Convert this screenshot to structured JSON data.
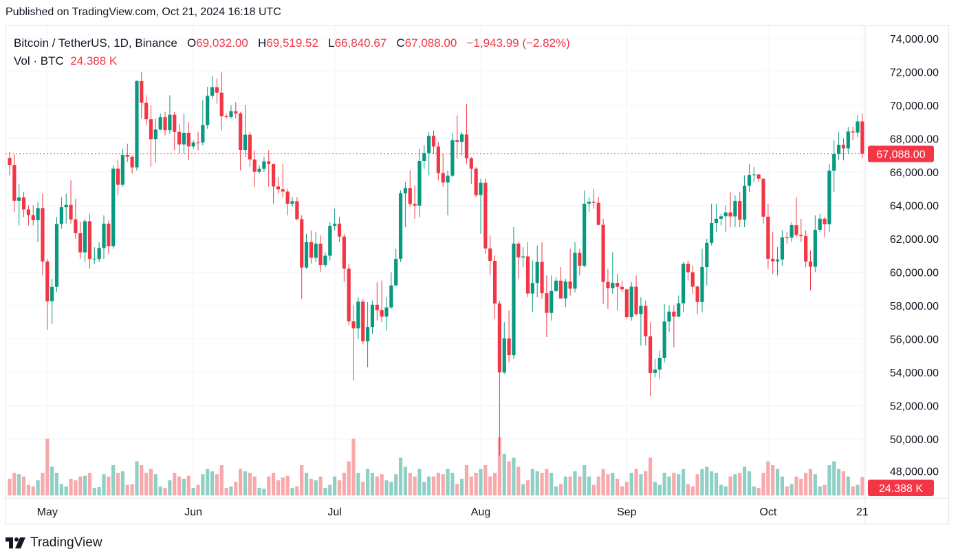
{
  "published": "Published on TradingView.com, Oct 21, 2024 16:18 UTC",
  "legend": {
    "symbol": "Bitcoin / TetherUS, 1D, Binance",
    "o_label": "O",
    "o_value": "69,032.00",
    "h_label": "H",
    "h_value": "69,519.52",
    "l_label": "L",
    "l_value": "66,840.67",
    "c_label": "C",
    "c_value": "67,088.00",
    "change": "−1,943.99 (−2.82%)",
    "vol_label": "Vol · BTC",
    "vol_value": "24.388 K"
  },
  "colors": {
    "up": "#089981",
    "down": "#f23645",
    "up_vol": "#8fd0c6",
    "down_vol": "#f7a9ac",
    "grid": "#f0f3fa"
  },
  "footer": {
    "brand": "TradingView"
  },
  "chart_data": {
    "type": "candlestick",
    "title": "Bitcoin / TetherUS, 1D, Binance",
    "start_date": "2024-04-23",
    "interval": "1D",
    "ylim": [
      47000,
      75000
    ],
    "y_ticks": [
      50000,
      52000,
      54000,
      56000,
      58000,
      60000,
      62000,
      64000,
      66000,
      68000,
      70000,
      72000,
      74000
    ],
    "y_tick_labels": [
      "50,000.00",
      "52,000.00",
      "54,000.00",
      "56,000.00",
      "58,000.00",
      "60,000.00",
      "62,000.00",
      "64,000.00",
      "66,000.00",
      "68,000.00",
      "70,000.00",
      "72,000.00",
      "74,000.00"
    ],
    "hidden_tick_label": "48,000.00",
    "x_ticks": [
      {
        "label": "May",
        "index": 8
      },
      {
        "label": "Jun",
        "index": 39
      },
      {
        "label": "Jul",
        "index": 69
      },
      {
        "label": "Aug",
        "index": 100
      },
      {
        "label": "Sep",
        "index": 131
      },
      {
        "label": "Oct",
        "index": 161
      },
      {
        "label": "21",
        "index": 181
      }
    ],
    "last_price": 67088.0,
    "last_price_label": "67,088.00",
    "last_volume_label": "24.388 K",
    "close": [
      66407,
      64276,
      64481,
      63755,
      63419,
      63113,
      63841,
      60636,
      58254,
      59123,
      62889,
      63891,
      64031,
      63161,
      62334,
      61187,
      63049,
      60792,
      60793,
      61448,
      62901,
      61552,
      66206,
      65235,
      67024,
      66915,
      66274,
      71446,
      70148,
      69166,
      67969,
      68549,
      69290,
      68507,
      69436,
      68398,
      67652,
      68352,
      67540,
      67766,
      67765,
      68809,
      70568,
      71082,
      70757,
      69342,
      69305,
      69648,
      69512,
      67319,
      68243,
      66756,
      66012,
      66191,
      66639,
      66490,
      65140,
      64960,
      64828,
      64096,
      64252,
      63180,
      60277,
      61804,
      60864,
      61706,
      60427,
      60986,
      62772,
      62900,
      62135,
      60208,
      57050,
      56628,
      58231,
      55857,
      56714,
      58050,
      57725,
      57339,
      57889,
      59204,
      60797,
      64724,
      65043,
      64087,
      63987,
      66660,
      67139,
      68165,
      67532,
      65937,
      65372,
      65777,
      67912,
      67813,
      68255,
      66819,
      66201,
      64619,
      65357,
      61415,
      60680,
      58116,
      53991,
      56034,
      55027,
      61710,
      60880,
      60945,
      58719,
      59354,
      60609,
      58738,
      57560,
      58874,
      59491,
      58427,
      59438,
      59013,
      61156,
      60381,
      64103,
      64220,
      64158,
      62835,
      59415,
      59034,
      59359,
      59123,
      58974,
      57301,
      59132,
      57487,
      57971,
      56160,
      53962,
      54160,
      54869,
      57042,
      57635,
      57339,
      58132,
      60499,
      59993,
      59132,
      58213,
      60309,
      61759,
      62947,
      63201,
      63348,
      63578,
      63339,
      64262,
      63143,
      65181,
      65828,
      65856,
      65602,
      63327,
      60805,
      60650,
      60754,
      62080,
      62068,
      62819,
      62224,
      62160,
      60636,
      60326,
      62540,
      63206,
      62870,
      66083,
      67074,
      67620,
      67421,
      68428,
      68368,
      69032,
      67088
    ],
    "first_open": 66837,
    "high": [
      67200,
      67070,
      65300,
      64800,
      64000,
      64000,
      64200,
      64700,
      60800,
      59600,
      63300,
      64500,
      64700,
      65500,
      64400,
      63000,
      63200,
      63500,
      61500,
      61800,
      63400,
      63100,
      66400,
      66700,
      67400,
      67700,
      67000,
      71500,
      71980,
      70600,
      70000,
      69200,
      69500,
      69600,
      70600,
      69600,
      68900,
      69500,
      69000,
      67900,
      68400,
      70300,
      71100,
      71760,
      71600,
      72000,
      69500,
      70000,
      70200,
      69600,
      70000,
      68400,
      67300,
      66400,
      66900,
      67300,
      66500,
      65700,
      66500,
      65000,
      64500,
      64500,
      63400,
      62300,
      62500,
      62400,
      62200,
      61200,
      63000,
      63800,
      63300,
      62300,
      60500,
      58000,
      58500,
      58400,
      58200,
      58300,
      59400,
      59500,
      58500,
      60000,
      61400,
      64900,
      65400,
      66100,
      65200,
      67400,
      67600,
      68400,
      68500,
      67800,
      67100,
      66100,
      68300,
      69400,
      68400,
      70080,
      66900,
      66300,
      65600,
      65600,
      62200,
      61000,
      58300,
      57000,
      57700,
      62700,
      61800,
      61500,
      61800,
      60700,
      61600,
      61800,
      59800,
      59800,
      59700,
      60300,
      59600,
      61400,
      61800,
      61400,
      64900,
      64500,
      65000,
      64500,
      63200,
      60200,
      61200,
      59900,
      59500,
      59000,
      59400,
      59800,
      58500,
      58300,
      57000,
      54800,
      55300,
      58100,
      58000,
      58000,
      58600,
      60600,
      60700,
      60400,
      59200,
      61400,
      62000,
      64100,
      64100,
      63500,
      64000,
      64800,
      64600,
      64800,
      65800,
      66500,
      66300,
      65900,
      65600,
      64100,
      62400,
      61500,
      62500,
      62400,
      63000,
      64500,
      63200,
      62500,
      61300,
      63400,
      63500,
      63300,
      66500,
      67900,
      68400,
      68000,
      68700,
      68700,
      69400,
      69519.52
    ],
    "low": [
      65800,
      63600,
      62800,
      63300,
      62800,
      62800,
      61800,
      59800,
      56550,
      56900,
      58800,
      62600,
      62900,
      62900,
      62000,
      60800,
      60600,
      60200,
      60500,
      60600,
      60800,
      61100,
      61400,
      64600,
      65100,
      66600,
      65900,
      66100,
      69200,
      68800,
      66300,
      66600,
      68500,
      68200,
      68300,
      67300,
      67100,
      67100,
      66700,
      67400,
      67300,
      67600,
      68600,
      70400,
      70100,
      68500,
      69200,
      69200,
      69200,
      66100,
      66900,
      66300,
      65100,
      65900,
      66000,
      65100,
      64100,
      64700,
      64500,
      63400,
      63900,
      63100,
      58400,
      60200,
      60500,
      60600,
      60000,
      60300,
      60700,
      62500,
      61800,
      59400,
      56800,
      53500,
      56000,
      55700,
      54300,
      56300,
      57100,
      57000,
      56500,
      57800,
      59200,
      60600,
      62700,
      63900,
      63200,
      63300,
      66200,
      65800,
      67100,
      65500,
      65100,
      63400,
      65700,
      66800,
      67000,
      66500,
      65300,
      64500,
      62300,
      61100,
      59800,
      57200,
      49000,
      53900,
      54600,
      54800,
      59600,
      60300,
      58500,
      57600,
      58500,
      58400,
      56100,
      57100,
      58800,
      58400,
      57900,
      58600,
      58800,
      59800,
      60300,
      63600,
      63800,
      62800,
      58100,
      57800,
      58700,
      57700,
      58800,
      57200,
      57100,
      57400,
      55600,
      55600,
      52550,
      53700,
      53600,
      54600,
      56400,
      55500,
      57300,
      57600,
      59500,
      58700,
      57500,
      57600,
      59200,
      61600,
      62400,
      62800,
      62400,
      62700,
      62700,
      62700,
      62700,
      64800,
      65400,
      65400,
      62900,
      60200,
      59900,
      59800,
      60400,
      61700,
      61800,
      62100,
      61800,
      60300,
      58900,
      60000,
      62400,
      62100,
      62400,
      64800,
      66700,
      66700,
      67100,
      67900,
      68100,
      66840.67
    ],
    "volume_k": [
      22,
      30,
      28,
      25,
      14,
      12,
      20,
      30,
      75,
      38,
      30,
      15,
      12,
      22,
      20,
      25,
      26,
      30,
      10,
      11,
      28,
      25,
      40,
      30,
      32,
      14,
      15,
      45,
      40,
      30,
      35,
      28,
      12,
      10,
      20,
      30,
      25,
      22,
      26,
      10,
      14,
      28,
      35,
      32,
      28,
      40,
      10,
      12,
      18,
      35,
      32,
      30,
      25,
      10,
      9,
      25,
      30,
      20,
      24,
      26,
      10,
      12,
      40,
      30,
      22,
      20,
      25,
      10,
      14,
      25,
      20,
      30,
      45,
      75,
      30,
      18,
      35,
      30,
      25,
      28,
      20,
      18,
      28,
      50,
      38,
      30,
      25,
      35,
      18,
      25,
      25,
      30,
      28,
      35,
      30,
      15,
      22,
      40,
      25,
      30,
      35,
      40,
      25,
      30,
      77,
      55,
      45,
      50,
      38,
      15,
      20,
      35,
      32,
      30,
      35,
      30,
      12,
      15,
      25,
      25,
      32,
      25,
      40,
      25,
      14,
      25,
      35,
      28,
      30,
      22,
      12,
      18,
      30,
      35,
      28,
      32,
      50,
      18,
      14,
      30,
      25,
      30,
      28,
      35,
      15,
      12,
      28,
      35,
      38,
      32,
      30,
      14,
      12,
      25,
      28,
      30,
      38,
      32,
      12,
      10,
      30,
      45,
      40,
      35,
      25,
      12,
      15,
      25,
      22,
      30,
      35,
      28,
      12,
      14,
      40,
      45,
      35,
      32,
      25,
      12,
      14,
      24.388
    ]
  }
}
